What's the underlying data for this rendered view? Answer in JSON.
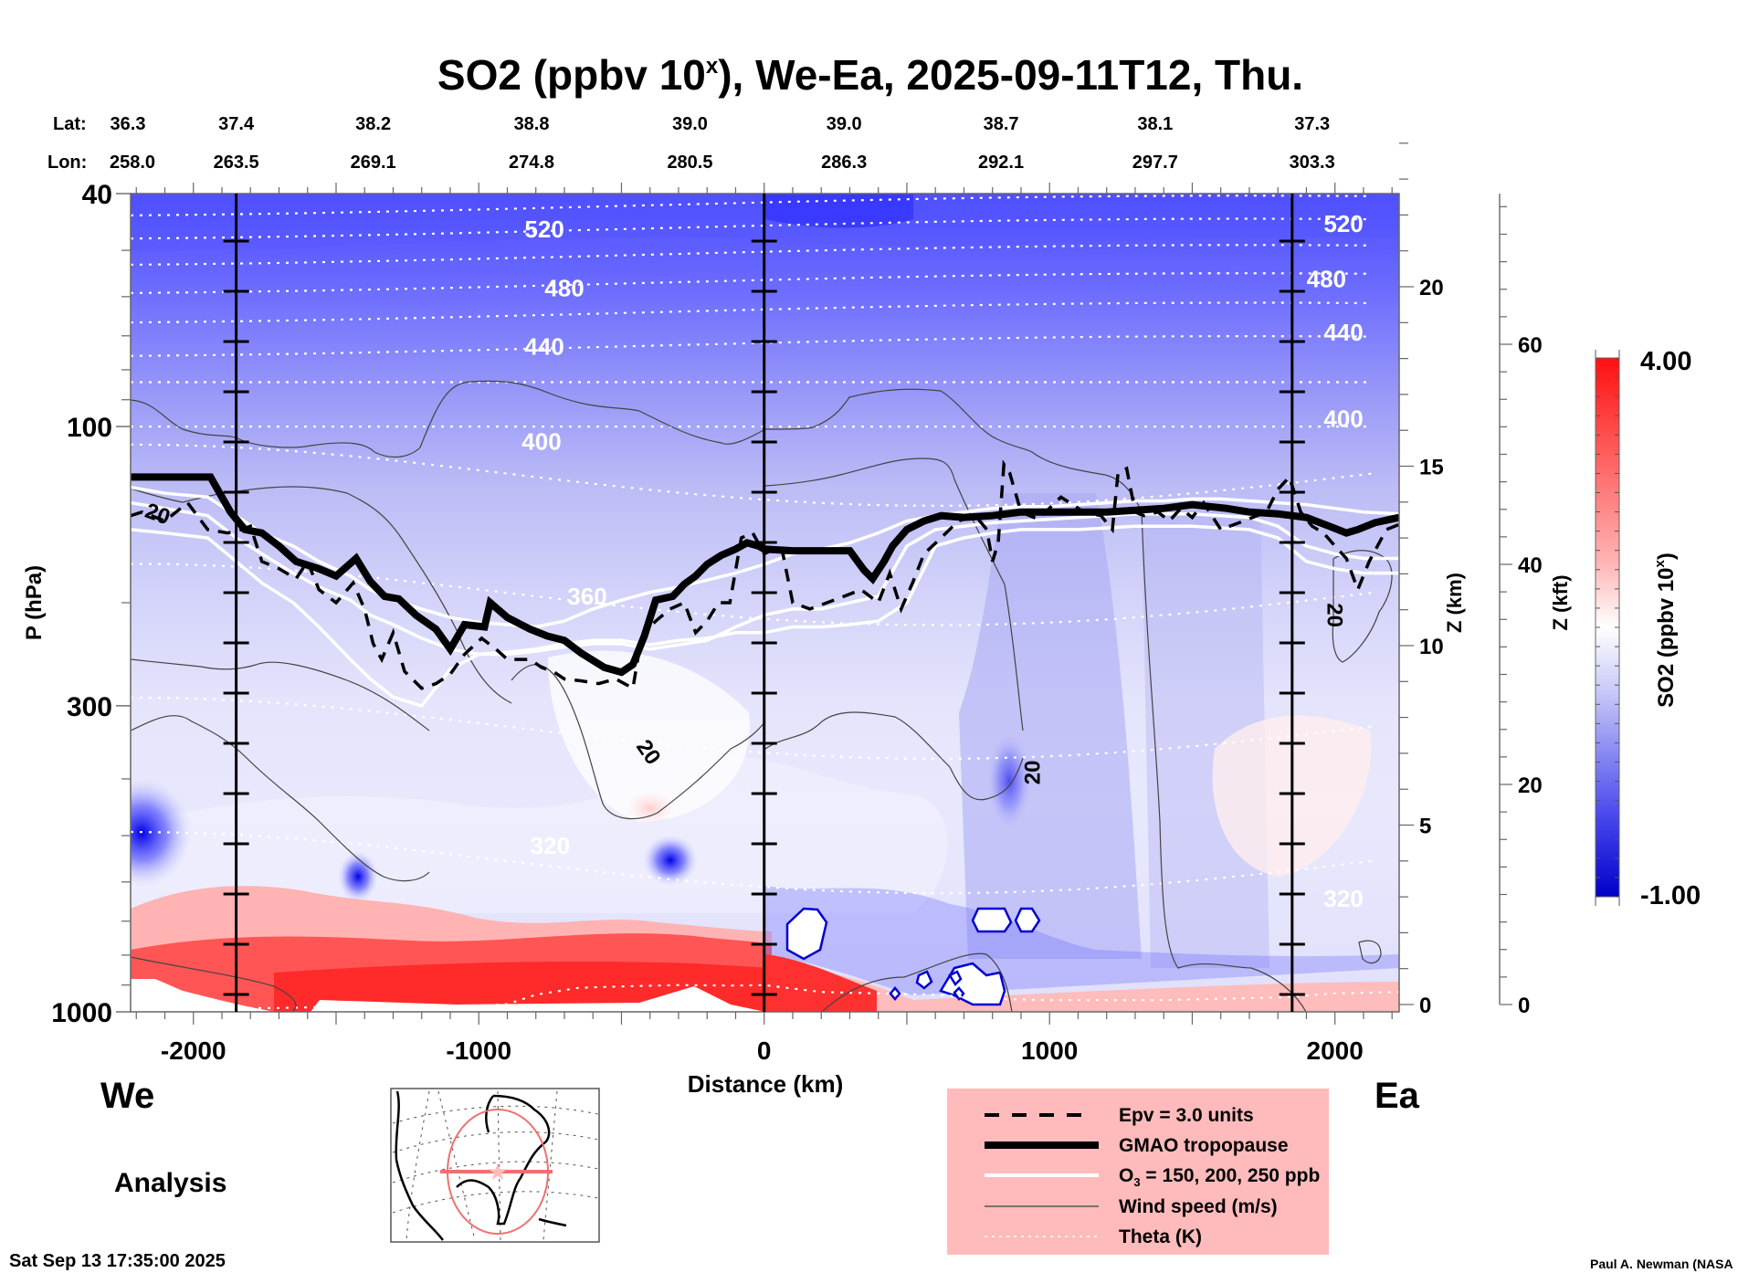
{
  "chart_data": {
    "type": "heatmap",
    "title_main": "SO2 (ppbv 10",
    "title_sup": "x",
    "title_rest": "), We-Ea, 2025-09-11T12, Thu.",
    "title": "SO2 (ppbv 10^x), We-Ea, 2025-09-11T12, Thu.",
    "xlabel": "Distance (km)",
    "ylabel": "P (hPa)",
    "y2label": "Z (km)",
    "y3label": "Z (kft)",
    "xlim": [
      -2220,
      2225
    ],
    "ylim": [
      1000,
      40
    ],
    "yscale": "log",
    "x_ticks": [
      -2000,
      -1000,
      0,
      1000,
      2000
    ],
    "y_ticks": [
      40,
      100,
      300,
      1000
    ],
    "z_km_ticks": [
      0,
      5,
      10,
      15,
      20
    ],
    "z_kft_ticks": [
      0,
      20,
      40,
      60
    ],
    "lat_label": "Lat:",
    "lon_label": "Lon:",
    "lat_values": [
      "36.3",
      "37.4",
      "38.2",
      "38.8",
      "39.0",
      "39.0",
      "38.7",
      "38.1",
      "37.3"
    ],
    "lon_values": [
      "258.0",
      "263.5",
      "269.1",
      "274.8",
      "280.5",
      "286.3",
      "292.1",
      "297.7",
      "303.3"
    ],
    "lat_lon_distances": [
      -2220,
      -1850,
      -1370,
      -815,
      -260,
      280,
      830,
      1370,
      1920
    ],
    "vertical_markers_km": [
      -1850,
      0,
      1850
    ],
    "left_label": "We",
    "right_label": "Ea",
    "colorbar": {
      "label_main": "SO2 (ppbv 10",
      "label_sup": "x",
      "label_close": ")",
      "min": -1.0,
      "max": 4.0,
      "min_label": "-1.00",
      "max_label": "4.00",
      "colors": [
        "#0000cc",
        "#ffffff",
        "#ff0000"
      ],
      "levels": 28
    },
    "theta_labels": [
      {
        "value": "520",
        "x": -770,
        "p": 46
      },
      {
        "value": "480",
        "x": -700,
        "p": 58
      },
      {
        "value": "440",
        "x": -770,
        "p": 73
      },
      {
        "value": "400",
        "x": -780,
        "p": 106
      },
      {
        "value": "360",
        "x": -620,
        "p": 195
      },
      {
        "value": "320",
        "x": -750,
        "p": 520
      },
      {
        "value": "520",
        "x": 2030,
        "p": 45
      },
      {
        "value": "480",
        "x": 1970,
        "p": 56
      },
      {
        "value": "440",
        "x": 2030,
        "p": 69
      },
      {
        "value": "400",
        "x": 2030,
        "p": 97
      },
      {
        "value": "320",
        "x": 2030,
        "p": 640
      }
    ],
    "theta_levels_k": [
      320,
      340,
      360,
      380,
      400,
      420,
      440,
      460,
      480,
      500,
      520,
      540
    ],
    "wind_labels": [
      {
        "value": "20",
        "x": -2125,
        "p": 141,
        "rot": 20
      },
      {
        "value": "20",
        "x": -405,
        "p": 360,
        "rot": 55
      },
      {
        "value": "20",
        "x": 940,
        "p": 390,
        "rot": -90
      },
      {
        "value": "20",
        "x": 2000,
        "p": 210,
        "rot": 90
      }
    ],
    "tropopause": {
      "x": [
        -2220,
        -1940,
        -1870,
        -1820,
        -1760,
        -1700,
        -1640,
        -1560,
        -1500,
        -1430,
        -1380,
        -1330,
        -1280,
        -1220,
        -1150,
        -1100,
        -1050,
        -980,
        -960,
        -900,
        -820,
        -760,
        -700,
        -640,
        -560,
        -500,
        -460,
        -420,
        -380,
        -320,
        -280,
        -240,
        -200,
        -150,
        -100,
        -60,
        -20,
        0,
        100,
        200,
        300,
        350,
        380,
        420,
        450,
        500,
        560,
        620,
        700,
        800,
        900,
        1000,
        1100,
        1200,
        1300,
        1400,
        1500,
        1560,
        1620,
        1700,
        1800,
        1850,
        1900,
        1980,
        2040,
        2080,
        2140,
        2225
      ],
      "p": [
        122,
        122,
        140,
        150,
        152,
        160,
        170,
        175,
        180,
        168,
        184,
        195,
        197,
        210,
        222,
        240,
        218,
        220,
        200,
        212,
        222,
        228,
        232,
        244,
        258,
        263,
        255,
        228,
        198,
        195,
        186,
        180,
        172,
        166,
        162,
        158,
        160,
        162,
        163,
        163,
        163,
        176,
        182,
        170,
        160,
        150,
        145,
        142,
        143,
        142,
        140,
        140,
        140,
        140,
        139,
        138,
        136,
        137,
        138,
        140,
        141,
        142,
        143,
        148,
        152,
        150,
        146,
        143
      ]
    },
    "epv_3": {
      "x": [
        -2220,
        -2180,
        -2100,
        -2020,
        -1950,
        -1880,
        -1830,
        -1800,
        -1760,
        -1700,
        -1640,
        -1600,
        -1560,
        -1500,
        -1440,
        -1400,
        -1370,
        -1340,
        -1300,
        -1260,
        -1200,
        -1150,
        -1100,
        -1050,
        -990,
        -940,
        -900,
        -860,
        -820,
        -780,
        -740,
        -700,
        -640,
        -580,
        -520,
        -460,
        -440,
        -420,
        -380,
        -330,
        -280,
        -240,
        -200,
        -160,
        -120,
        -80,
        -40,
        0,
        60,
        100,
        160,
        220,
        280,
        340,
        400,
        440,
        480,
        520,
        560,
        620,
        680,
        740,
        780,
        800,
        820,
        840,
        860,
        900,
        960,
        1040,
        1120,
        1180,
        1220,
        1240,
        1270,
        1300,
        1330,
        1380,
        1420,
        1460,
        1500,
        1540,
        1600,
        1680,
        1760,
        1800,
        1840,
        1880,
        1920,
        1960,
        2000,
        2040,
        2080,
        2120,
        2180,
        2225
      ],
      "p": [
        142,
        140,
        145,
        135,
        150,
        152,
        150,
        148,
        170,
        175,
        182,
        170,
        190,
        200,
        185,
        205,
        235,
        250,
        225,
        262,
        280,
        275,
        265,
        245,
        230,
        240,
        250,
        250,
        250,
        258,
        262,
        270,
        272,
        275,
        270,
        280,
        245,
        225,
        215,
        205,
        200,
        225,
        215,
        200,
        200,
        155,
        152,
        165,
        160,
        200,
        205,
        200,
        195,
        190,
        200,
        178,
        205,
        185,
        165,
        155,
        145,
        142,
        150,
        170,
        158,
        116,
        120,
        140,
        144,
        132,
        140,
        142,
        150,
        120,
        118,
        140,
        142,
        140,
        145,
        138,
        143,
        135,
        150,
        145,
        140,
        128,
        122,
        140,
        148,
        152,
        160,
        168,
        190,
        170,
        150,
        147
      ]
    },
    "ozone_contours": [
      {
        "level": 150,
        "x": [
          -2220,
          -2100,
          -1950,
          -1850,
          -1760,
          -1650,
          -1560,
          -1450,
          -1380,
          -1300,
          -1200,
          -1100,
          -1000,
          -900,
          -800,
          -700,
          -600,
          -500,
          -400,
          -300,
          -200,
          -100,
          0,
          100,
          200,
          300,
          400,
          500,
          600,
          700,
          800,
          900,
          1000,
          1100,
          1200,
          1300,
          1400,
          1500,
          1600,
          1700,
          1800,
          1900,
          2000,
          2100,
          2225
        ],
        "p": [
          127,
          130,
          132,
          142,
          152,
          160,
          170,
          180,
          190,
          198,
          205,
          212,
          216,
          218,
          220,
          215,
          205,
          198,
          192,
          188,
          183,
          178,
          172,
          165,
          162,
          158,
          152,
          145,
          142,
          140,
          138,
          137,
          137,
          136,
          135,
          134,
          134,
          133,
          133,
          134,
          135,
          136,
          138,
          140,
          141
        ]
      },
      {
        "level": 200,
        "x": [
          -2220,
          -2100,
          -1950,
          -1850,
          -1760,
          -1650,
          -1560,
          -1450,
          -1380,
          -1300,
          -1200,
          -1100,
          -1000,
          -900,
          -800,
          -700,
          -600,
          -500,
          -400,
          -300,
          -200,
          -100,
          0,
          100,
          200,
          300,
          400,
          500,
          600,
          700,
          800,
          900,
          1000,
          1100,
          1200,
          1300,
          1400,
          1500,
          1600,
          1700,
          1800,
          1900,
          2000,
          2100,
          2225
        ],
        "p": [
          135,
          138,
          142,
          155,
          165,
          178,
          188,
          198,
          210,
          218,
          230,
          240,
          245,
          245,
          242,
          238,
          235,
          235,
          240,
          236,
          232,
          220,
          210,
          205,
          205,
          200,
          195,
          160,
          150,
          148,
          146,
          145,
          144,
          143,
          142,
          141,
          141,
          141,
          142,
          143,
          148,
          160,
          165,
          168,
          168
        ]
      },
      {
        "level": 250,
        "x": [
          -2220,
          -2100,
          -1950,
          -1850,
          -1760,
          -1650,
          -1560,
          -1450,
          -1380,
          -1300,
          -1200,
          -1100,
          -1000,
          -900,
          -800,
          -700,
          -600,
          -500,
          -400,
          -300,
          -200,
          -100,
          0,
          100,
          200,
          300,
          400,
          500,
          600,
          700,
          800,
          900,
          1000,
          1100,
          1200,
          1300,
          1400,
          1500,
          1600,
          1700,
          1800,
          1900,
          2000,
          2100,
          2225
        ],
        "p": [
          150,
          152,
          155,
          170,
          185,
          200,
          220,
          250,
          270,
          290,
          300,
          260,
          245,
          243,
          240,
          235,
          232,
          232,
          236,
          232,
          230,
          225,
          225,
          220,
          220,
          218,
          215,
          200,
          160,
          155,
          152,
          150,
          150,
          150,
          149,
          148,
          148,
          148,
          149,
          150,
          155,
          170,
          175,
          178,
          178
        ]
      }
    ],
    "legend": [
      {
        "label": "Epv = 3.0 units",
        "style": "dashed-thick"
      },
      {
        "label": "GMAO tropopause",
        "style": "solid-heavy"
      },
      {
        "label": "O",
        "sub": "3",
        "rest": " = 150, 200, 250 ppb",
        "style": "solid-white"
      },
      {
        "label": "Wind speed (m/s)",
        "style": "solid-thin-gray"
      },
      {
        "label": "Theta (K)",
        "style": "dotted-white"
      }
    ],
    "legend_bg": "#ffbbbb",
    "mode_label": "Analysis",
    "timestamp": "Sat Sep 13 17:35:00 2025",
    "credit": "Paul A. Newman (NASA"
  }
}
